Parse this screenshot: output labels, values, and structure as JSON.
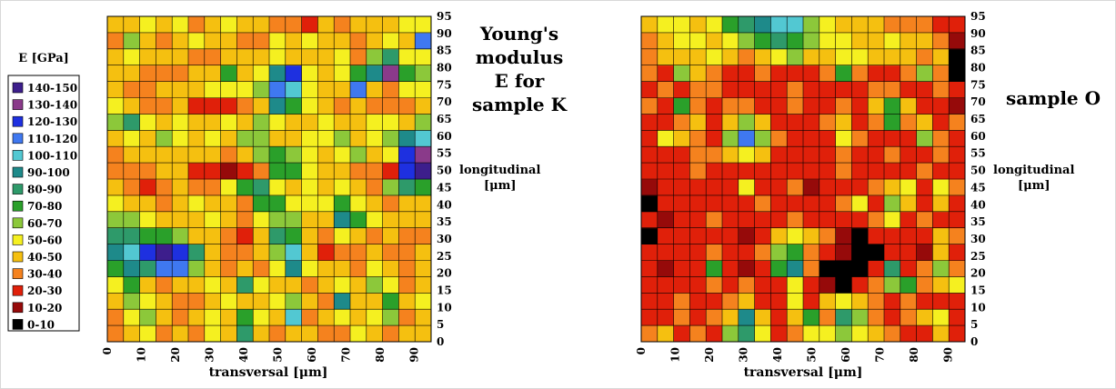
{
  "legend": {
    "title": "E [GPa]",
    "bins": [
      {
        "label": "140-150",
        "color": "#3d1e8c"
      },
      {
        "label": "130-140",
        "color": "#8a3a8a"
      },
      {
        "label": "120-130",
        "color": "#1e30e0"
      },
      {
        "label": "110-120",
        "color": "#3f78f0"
      },
      {
        "label": "100-110",
        "color": "#52c8d2"
      },
      {
        "label": "90-100",
        "color": "#1e8a8a"
      },
      {
        "label": "80-90",
        "color": "#2e9a6a"
      },
      {
        "label": "70-80",
        "color": "#2aa02a"
      },
      {
        "label": "60-70",
        "color": "#8cc83a"
      },
      {
        "label": "50-60",
        "color": "#f5f020"
      },
      {
        "label": "40-50",
        "color": "#f5c010"
      },
      {
        "label": "30-40",
        "color": "#f5821e"
      },
      {
        "label": "20-30",
        "color": "#e0200a"
      },
      {
        "label": "10-20",
        "color": "#960a0a"
      },
      {
        "label": "0-10",
        "color": "#000000"
      }
    ]
  },
  "chart_data": [
    {
      "type": "heatmap",
      "title": "Young's modulus E for sample K",
      "title_lines": [
        "Young's",
        "modulus",
        "E for",
        "sample K"
      ],
      "xlabel": "transversal [μm]",
      "ylabel_lines": [
        "longitudinal",
        "[μm]"
      ],
      "x_ticks": [
        "0",
        "10",
        "20",
        "30",
        "40",
        "50",
        "60",
        "70",
        "80",
        "90"
      ],
      "y_ticks": [
        "0",
        "5",
        "10",
        "15",
        "20",
        "25",
        "30",
        "35",
        "40",
        "45",
        "50",
        "55",
        "60",
        "65",
        "70",
        "75",
        "80",
        "85",
        "90",
        "95"
      ],
      "xlim": [
        0,
        95
      ],
      "ylim": [
        0,
        95
      ],
      "grid": true,
      "colors": "legend.bins",
      "values_unit": "GPa",
      "x": [
        0,
        5,
        10,
        15,
        20,
        25,
        30,
        35,
        40,
        45,
        50,
        55,
        60,
        65,
        70,
        75,
        80,
        85,
        90,
        95
      ],
      "y": [
        0,
        5,
        10,
        15,
        20,
        25,
        30,
        35,
        40,
        45,
        50,
        55,
        60,
        65,
        70,
        75,
        80,
        85,
        90,
        95
      ],
      "z": [
        [
          35,
          45,
          55,
          35,
          42,
          38,
          55,
          40,
          85,
          45,
          38,
          45,
          42,
          35,
          38,
          55,
          42,
          38,
          45,
          48
        ],
        [
          38,
          55,
          62,
          45,
          38,
          42,
          50,
          45,
          75,
          55,
          45,
          100,
          38,
          42,
          55,
          45,
          55,
          65,
          38,
          45
        ],
        [
          42,
          65,
          58,
          42,
          35,
          38,
          45,
          55,
          42,
          45,
          55,
          65,
          48,
          35,
          95,
          40,
          45,
          75,
          42,
          55
        ],
        [
          55,
          75,
          48,
          38,
          42,
          45,
          55,
          42,
          85,
          55,
          45,
          45,
          38,
          42,
          55,
          42,
          65,
          55,
          38,
          45
        ],
        [
          75,
          95,
          85,
          110,
          115,
          60,
          45,
          38,
          45,
          35,
          55,
          95,
          55,
          42,
          45,
          38,
          55,
          45,
          35,
          42
        ],
        [
          95,
          105,
          125,
          140,
          120,
          80,
          42,
          35,
          38,
          45,
          65,
          105,
          45,
          25,
          38,
          35,
          42,
          35,
          38,
          45
        ],
        [
          85,
          80,
          70,
          75,
          60,
          48,
          40,
          30,
          25,
          42,
          80,
          75,
          45,
          35,
          55,
          42,
          38,
          42,
          35,
          38
        ],
        [
          65,
          60,
          52,
          45,
          42,
          48,
          55,
          42,
          38,
          50,
          65,
          60,
          48,
          45,
          95,
          72,
          52,
          45,
          40,
          42
        ],
        [
          55,
          48,
          42,
          38,
          45,
          55,
          45,
          40,
          35,
          75,
          70,
          55,
          50,
          55,
          70,
          55,
          42,
          38,
          45,
          48
        ],
        [
          42,
          35,
          20,
          38,
          42,
          35,
          38,
          55,
          70,
          85,
          55,
          45,
          55,
          48,
          50,
          45,
          38,
          60,
          80,
          75
        ],
        [
          38,
          32,
          35,
          45,
          48,
          25,
          22,
          18,
          22,
          35,
          75,
          70,
          55,
          45,
          42,
          38,
          35,
          25,
          125,
          140
        ],
        [
          35,
          40,
          45,
          48,
          42,
          45,
          42,
          38,
          45,
          60,
          72,
          60,
          55,
          45,
          55,
          60,
          42,
          52,
          120,
          130
        ],
        [
          45,
          55,
          48,
          60,
          55,
          45,
          50,
          48,
          62,
          65,
          48,
          45,
          50,
          55,
          62,
          48,
          55,
          65,
          95,
          105
        ],
        [
          62,
          80,
          55,
          45,
          52,
          48,
          45,
          55,
          45,
          62,
          55,
          42,
          48,
          58,
          45,
          42,
          55,
          52,
          45,
          60
        ],
        [
          55,
          42,
          35,
          38,
          42,
          25,
          20,
          28,
          35,
          45,
          95,
          75,
          55,
          45,
          38,
          42,
          35,
          30,
          38,
          42
        ],
        [
          45,
          38,
          35,
          40,
          42,
          45,
          55,
          52,
          58,
          60,
          115,
          105,
          55,
          42,
          48,
          110,
          48,
          35,
          55,
          55
        ],
        [
          40,
          42,
          38,
          35,
          38,
          48,
          45,
          75,
          42,
          55,
          95,
          125,
          55,
          48,
          55,
          75,
          90,
          135,
          70,
          60
        ],
        [
          45,
          55,
          48,
          45,
          42,
          38,
          35,
          40,
          48,
          45,
          55,
          48,
          42,
          40,
          55,
          38,
          60,
          80,
          55,
          55
        ],
        [
          38,
          60,
          42,
          35,
          45,
          50,
          40,
          45,
          38,
          35,
          55,
          45,
          55,
          42,
          45,
          38,
          48,
          50,
          42,
          115
        ],
        [
          48,
          48,
          55,
          45,
          50,
          38,
          45,
          55,
          40,
          42,
          30,
          35,
          28,
          45,
          38,
          42,
          45,
          40,
          50,
          55
        ]
      ]
    },
    {
      "type": "heatmap",
      "title": "sample O",
      "xlabel": "transversal [μm]",
      "ylabel_lines": [
        "longitudinal",
        "[μm]"
      ],
      "x_ticks": [
        "0",
        "10",
        "20",
        "30",
        "40",
        "50",
        "60",
        "70",
        "80",
        "90"
      ],
      "y_ticks": [
        "0",
        "5",
        "10",
        "15",
        "20",
        "25",
        "30",
        "35",
        "40",
        "45",
        "50",
        "55",
        "60",
        "65",
        "70",
        "75",
        "80",
        "85",
        "90",
        "95"
      ],
      "xlim": [
        0,
        95
      ],
      "ylim": [
        0,
        95
      ],
      "grid": true,
      "colors": "legend.bins",
      "values_unit": "GPa",
      "x": [
        0,
        5,
        10,
        15,
        20,
        25,
        30,
        35,
        40,
        45,
        50,
        55,
        60,
        65,
        70,
        75,
        80,
        85,
        90,
        95
      ],
      "y": [
        0,
        5,
        10,
        15,
        20,
        25,
        30,
        35,
        40,
        45,
        50,
        55,
        60,
        65,
        70,
        75,
        80,
        85,
        90,
        95
      ],
      "z": [
        [
          30,
          45,
          25,
          30,
          28,
          60,
          85,
          55,
          25,
          30,
          55,
          50,
          65,
          55,
          45,
          38,
          25,
          28,
          40,
          22
        ],
        [
          20,
          28,
          30,
          25,
          35,
          45,
          95,
          40,
          25,
          45,
          75,
          38,
          80,
          60,
          35,
          25,
          30,
          45,
          55,
          25
        ],
        [
          25,
          22,
          30,
          28,
          25,
          35,
          45,
          28,
          25,
          55,
          25,
          45,
          55,
          45,
          30,
          25,
          35,
          28,
          25,
          20
        ],
        [
          28,
          25,
          22,
          28,
          35,
          25,
          30,
          20,
          28,
          55,
          28,
          12,
          8,
          25,
          30,
          65,
          72,
          35,
          45,
          55
        ],
        [
          20,
          18,
          25,
          25,
          70,
          20,
          15,
          25,
          75,
          95,
          30,
          8,
          5,
          8,
          25,
          85,
          20,
          35,
          65,
          30
        ],
        [
          25,
          20,
          28,
          22,
          30,
          25,
          25,
          35,
          65,
          70,
          35,
          20,
          10,
          5,
          8,
          25,
          25,
          15,
          40,
          25
        ],
        [
          8,
          25,
          22,
          25,
          28,
          20,
          18,
          22,
          45,
          55,
          40,
          30,
          18,
          5,
          25,
          25,
          22,
          28,
          45,
          30
        ],
        [
          25,
          15,
          28,
          25,
          30,
          20,
          25,
          28,
          25,
          35,
          25,
          22,
          20,
          25,
          30,
          55,
          25,
          30,
          25,
          28
        ],
        [
          8,
          20,
          25,
          25,
          20,
          25,
          20,
          30,
          25,
          28,
          25,
          20,
          30,
          55,
          25,
          60,
          40,
          25,
          45,
          28
        ],
        [
          18,
          25,
          22,
          25,
          25,
          28,
          55,
          25,
          20,
          30,
          18,
          25,
          25,
          25,
          30,
          45,
          55,
          28,
          50,
          30
        ],
        [
          20,
          25,
          25,
          30,
          28,
          20,
          25,
          25,
          28,
          25,
          22,
          25,
          30,
          25,
          25,
          20,
          25,
          30,
          25,
          28
        ],
        [
          25,
          28,
          25,
          30,
          35,
          45,
          55,
          40,
          25,
          22,
          28,
          25,
          35,
          25,
          28,
          30,
          25,
          25,
          35,
          25
        ],
        [
          25,
          55,
          40,
          30,
          22,
          60,
          110,
          65,
          30,
          25,
          22,
          25,
          55,
          30,
          25,
          20,
          25,
          60,
          30,
          25
        ],
        [
          22,
          28,
          35,
          40,
          28,
          40,
          65,
          40,
          25,
          28,
          25,
          30,
          40,
          25,
          30,
          70,
          30,
          40,
          25,
          30
        ],
        [
          30,
          25,
          75,
          35,
          25,
          30,
          35,
          25,
          20,
          30,
          25,
          28,
          30,
          28,
          40,
          75,
          45,
          25,
          28,
          15
        ],
        [
          25,
          30,
          25,
          35,
          30,
          28,
          25,
          20,
          28,
          30,
          25,
          22,
          25,
          25,
          30,
          35,
          28,
          25,
          30,
          25
        ],
        [
          30,
          22,
          65,
          40,
          30,
          25,
          22,
          30,
          25,
          25,
          28,
          30,
          70,
          30,
          25,
          28,
          35,
          65,
          30,
          5
        ],
        [
          35,
          45,
          40,
          45,
          50,
          40,
          35,
          42,
          55,
          65,
          45,
          40,
          55,
          50,
          42,
          40,
          45,
          38,
          42,
          8
        ],
        [
          30,
          45,
          55,
          50,
          45,
          55,
          65,
          75,
          80,
          70,
          65,
          55,
          50,
          45,
          48,
          50,
          45,
          40,
          35,
          18
        ],
        [
          45,
          50,
          55,
          45,
          55,
          70,
          85,
          95,
          100,
          105,
          60,
          50,
          45,
          42,
          40,
          38,
          35,
          30,
          25,
          20
        ]
      ]
    }
  ]
}
